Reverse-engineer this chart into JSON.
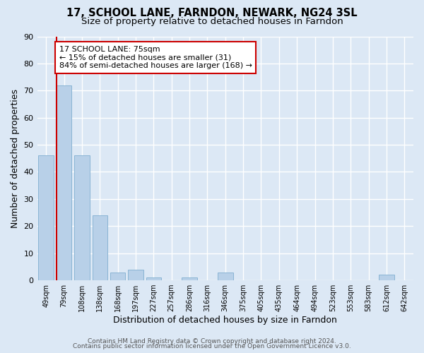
{
  "title": "17, SCHOOL LANE, FARNDON, NEWARK, NG24 3SL",
  "subtitle": "Size of property relative to detached houses in Farndon",
  "xlabel": "Distribution of detached houses by size in Farndon",
  "ylabel": "Number of detached properties",
  "bar_labels": [
    "49sqm",
    "79sqm",
    "108sqm",
    "138sqm",
    "168sqm",
    "197sqm",
    "227sqm",
    "257sqm",
    "286sqm",
    "316sqm",
    "346sqm",
    "375sqm",
    "405sqm",
    "435sqm",
    "464sqm",
    "494sqm",
    "523sqm",
    "553sqm",
    "583sqm",
    "612sqm",
    "642sqm"
  ],
  "bar_values": [
    46,
    72,
    46,
    24,
    3,
    4,
    1,
    0,
    1,
    0,
    3,
    0,
    0,
    0,
    0,
    0,
    0,
    0,
    0,
    2,
    0
  ],
  "bar_color": "#b8d0e8",
  "bar_edge_color": "#8ab4d4",
  "ylim": [
    0,
    90
  ],
  "yticks": [
    0,
    10,
    20,
    30,
    40,
    50,
    60,
    70,
    80,
    90
  ],
  "vline_color": "#cc0000",
  "annotation_title": "17 SCHOOL LANE: 75sqm",
  "annotation_line1": "← 15% of detached houses are smaller (31)",
  "annotation_line2": "84% of semi-detached houses are larger (168) →",
  "annotation_box_color": "#cc0000",
  "footer1": "Contains HM Land Registry data © Crown copyright and database right 2024.",
  "footer2": "Contains public sector information licensed under the Open Government Licence v3.0.",
  "bg_color": "#dce8f5",
  "plot_bg_color": "#dce8f5",
  "grid_color": "#ffffff",
  "title_fontsize": 10.5,
  "subtitle_fontsize": 9.5
}
